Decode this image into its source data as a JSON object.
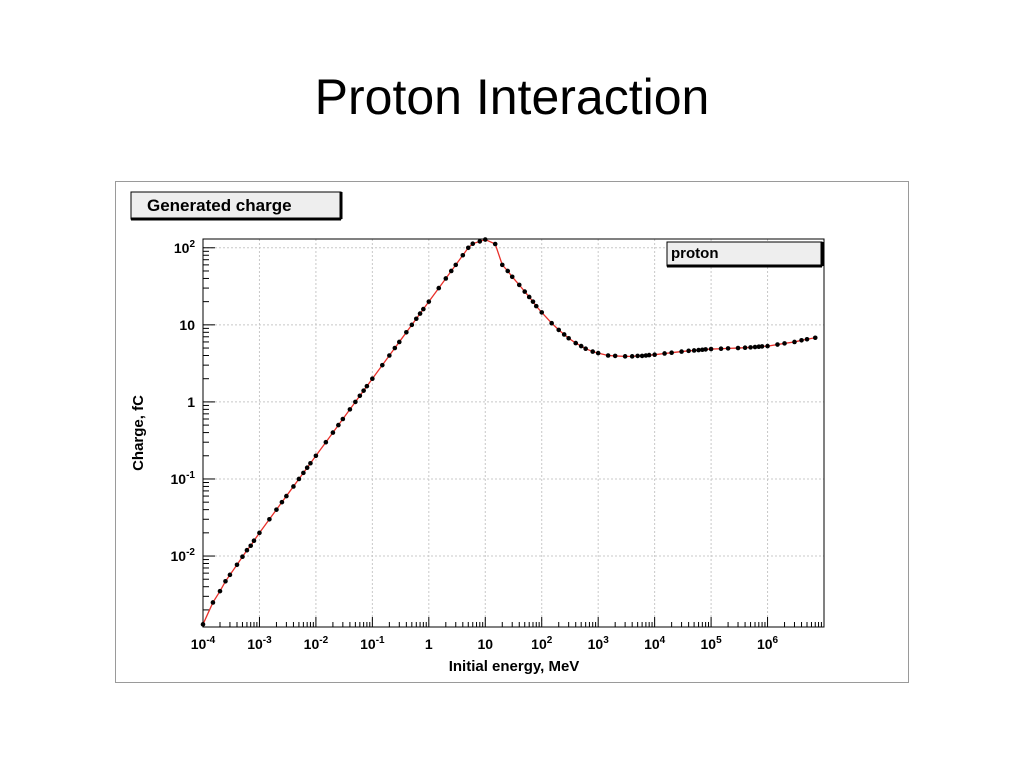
{
  "slide": {
    "title": "Proton Interaction"
  },
  "chart_data": {
    "type": "line",
    "title": "Generated charge",
    "xlabel": "Initial energy, MeV",
    "ylabel": "Charge, fC",
    "x_scale": "log",
    "y_scale": "log",
    "xlim": [
      0.0001,
      10000000
    ],
    "ylim": [
      0.0012,
      130
    ],
    "grid": true,
    "legend_placement": "top-right",
    "colors": {
      "line": "#e8302a",
      "marker": "#000000",
      "grid": "#c8c8c8"
    },
    "x_tick_labels": [
      {
        "value": 0.0001,
        "base": "10",
        "exp": "-4"
      },
      {
        "value": 0.001,
        "base": "10",
        "exp": "-3"
      },
      {
        "value": 0.01,
        "base": "10",
        "exp": "-2"
      },
      {
        "value": 0.1,
        "base": "10",
        "exp": "-1"
      },
      {
        "value": 1,
        "base": "1",
        "exp": ""
      },
      {
        "value": 10,
        "base": "10",
        "exp": ""
      },
      {
        "value": 100,
        "base": "10",
        "exp": "2"
      },
      {
        "value": 1000,
        "base": "10",
        "exp": "3"
      },
      {
        "value": 10000,
        "base": "10",
        "exp": "4"
      },
      {
        "value": 100000,
        "base": "10",
        "exp": "5"
      },
      {
        "value": 1000000,
        "base": "10",
        "exp": "6"
      }
    ],
    "y_tick_labels": [
      {
        "value": 100,
        "base": "10",
        "exp": "2"
      },
      {
        "value": 10,
        "base": "10",
        "exp": ""
      },
      {
        "value": 1,
        "base": "1",
        "exp": ""
      },
      {
        "value": 0.1,
        "base": "10",
        "exp": "-1"
      },
      {
        "value": 0.01,
        "base": "10",
        "exp": "-2"
      }
    ],
    "series": [
      {
        "name": "proton",
        "points": [
          [
            0.0001,
            0.0013
          ],
          [
            0.00015,
            0.0025
          ],
          [
            0.0002,
            0.0035
          ],
          [
            0.00025,
            0.0047
          ],
          [
            0.0003,
            0.0057
          ],
          [
            0.0004,
            0.0077
          ],
          [
            0.0005,
            0.0098
          ],
          [
            0.0006,
            0.0119
          ],
          [
            0.0007,
            0.0136
          ],
          [
            0.0008,
            0.0158
          ],
          [
            0.001,
            0.02
          ],
          [
            0.0015,
            0.03
          ],
          [
            0.002,
            0.04
          ],
          [
            0.0025,
            0.05
          ],
          [
            0.003,
            0.06
          ],
          [
            0.004,
            0.08
          ],
          [
            0.005,
            0.1
          ],
          [
            0.006,
            0.12
          ],
          [
            0.007,
            0.14
          ],
          [
            0.008,
            0.16
          ],
          [
            0.01,
            0.2
          ],
          [
            0.015,
            0.3
          ],
          [
            0.02,
            0.4
          ],
          [
            0.025,
            0.5
          ],
          [
            0.03,
            0.6
          ],
          [
            0.04,
            0.8
          ],
          [
            0.05,
            1.0
          ],
          [
            0.06,
            1.2
          ],
          [
            0.07,
            1.4
          ],
          [
            0.08,
            1.6
          ],
          [
            0.1,
            2.0
          ],
          [
            0.15,
            3.0
          ],
          [
            0.2,
            4.0
          ],
          [
            0.25,
            5.0
          ],
          [
            0.3,
            6.0
          ],
          [
            0.4,
            8.0
          ],
          [
            0.5,
            10.0
          ],
          [
            0.6,
            12.0
          ],
          [
            0.7,
            14.0
          ],
          [
            0.8,
            16.0
          ],
          [
            1,
            20
          ],
          [
            1.5,
            30
          ],
          [
            2,
            40
          ],
          [
            2.5,
            50
          ],
          [
            3,
            60
          ],
          [
            4,
            80
          ],
          [
            5,
            100
          ],
          [
            6,
            113
          ],
          [
            8,
            121
          ],
          [
            10,
            128
          ],
          [
            15,
            112
          ],
          [
            20,
            60
          ],
          [
            25,
            50
          ],
          [
            30,
            42
          ],
          [
            40,
            33
          ],
          [
            50,
            27
          ],
          [
            60,
            23
          ],
          [
            70,
            20
          ],
          [
            80,
            17.5
          ],
          [
            100,
            14.5
          ],
          [
            150,
            10.5
          ],
          [
            200,
            8.6
          ],
          [
            250,
            7.5
          ],
          [
            300,
            6.7
          ],
          [
            400,
            5.8
          ],
          [
            500,
            5.3
          ],
          [
            600,
            4.9
          ],
          [
            800,
            4.5
          ],
          [
            1000,
            4.3
          ],
          [
            1500,
            4.0
          ],
          [
            2000,
            3.95
          ],
          [
            3000,
            3.9
          ],
          [
            4000,
            3.9
          ],
          [
            5000,
            3.95
          ],
          [
            6000,
            3.95
          ],
          [
            7000,
            4.0
          ],
          [
            8000,
            4.05
          ],
          [
            10000,
            4.1
          ],
          [
            15000,
            4.25
          ],
          [
            20000,
            4.35
          ],
          [
            30000,
            4.5
          ],
          [
            40000,
            4.6
          ],
          [
            50000,
            4.65
          ],
          [
            60000,
            4.7
          ],
          [
            70000,
            4.75
          ],
          [
            80000,
            4.8
          ],
          [
            100000,
            4.85
          ],
          [
            150000,
            4.9
          ],
          [
            200000,
            4.95
          ],
          [
            300000,
            5.0
          ],
          [
            400000,
            5.05
          ],
          [
            500000,
            5.1
          ],
          [
            600000,
            5.15
          ],
          [
            700000,
            5.2
          ],
          [
            800000,
            5.25
          ],
          [
            1000000,
            5.3
          ],
          [
            1500000,
            5.55
          ],
          [
            2000000,
            5.75
          ],
          [
            3000000,
            6.0
          ],
          [
            4000000,
            6.3
          ],
          [
            5000000,
            6.5
          ],
          [
            7000000,
            6.8
          ]
        ]
      }
    ]
  }
}
